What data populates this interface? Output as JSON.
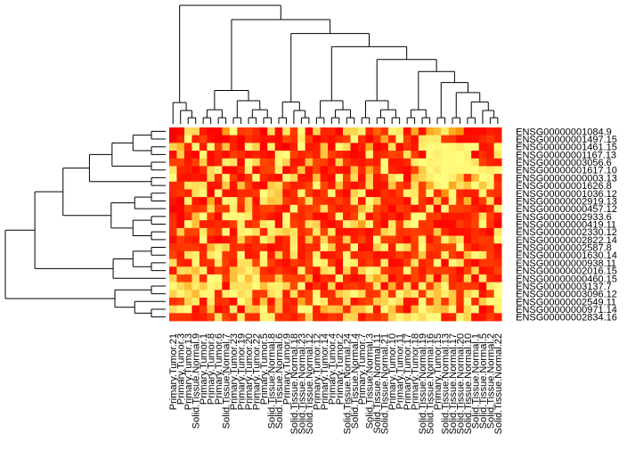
{
  "chart_data": {
    "type": "heatmap",
    "title": "",
    "xlabel": "",
    "ylabel": "",
    "colors": {
      "low": "#ffff80",
      "mid": "#ff8c00",
      "high": "#ff0000"
    },
    "value_range": [
      0,
      1
    ],
    "column_labels": [
      "Primary.Tumor.21",
      "Primary.Tumor.3",
      "Primary.Tumor.13",
      "Solid.Tissue.Normal.9",
      "Primary.Tumor.1",
      "Primary.Tumor.8",
      "Primary.Tumor.6",
      "Solid.Tissue.Normal.7",
      "Primary.Tumor.23",
      "Primary.Tumor.19",
      "Primary.Tumor.20",
      "Primary.Tumor.22",
      "Primary.Tumor.5",
      "Solid.Tissue.Normal.8",
      "Solid.Tissue.Normal.6",
      "Primary.Tumor.9",
      "Solid.Tissue.Normal.18",
      "Solid.Tissue.Normal.23",
      "Solid.Tissue.Normal.12",
      "Primary.Tumor.12",
      "Primary.Tumor.14",
      "Primary.Tumor.4",
      "Primary.Tumor.2",
      "Solid.Tissue.Normal.24",
      "Solid.Tissue.Normal.4",
      "Primary.Tumor.7",
      "Solid.Tissue.Normal.3",
      "Solid.Tissue.Normal.11",
      "Solid.Tissue.Normal.21",
      "Primary.Tumor.10",
      "Primary.Tumor.11",
      "Primary.Tumor.17",
      "Primary.Tumor.18",
      "Solid.Tissue.Normal.19",
      "Solid.Tissue.Normal.16",
      "Primary.Tumor.15",
      "Solid.Tissue.Normal.13",
      "Solid.Tissue.Normal.17",
      "Solid.Tissue.Normal.20",
      "Solid.Tissue.Normal.10",
      "Solid.Tissue.Normal.1",
      "Solid.Tissue.Normal.5",
      "Solid.Tissue.Normal.2",
      "Solid.Tissue.Normal.22"
    ],
    "row_labels": [
      "ENSG00000001084.9",
      "ENSG00000001497.15",
      "ENSG00000001461.15",
      "ENSG00000001167.13",
      "ENSG00000003056.6",
      "ENSG00000001617.10",
      "ENSG00000000003.13",
      "ENSG00000001626.8",
      "ENSG00000001036.12",
      "ENSG00000002919.13",
      "ENSG00000000457.12",
      "ENSG00000002933.6",
      "ENSG00000000419.11",
      "ENSG00000002330.12",
      "ENSG00000002822.14",
      "ENSG00000002587.8",
      "ENSG00000001630.14",
      "ENSG00000000938.11",
      "ENSG00000002016.15",
      "ENSG00000000460.15",
      "ENSG00000003137.7",
      "ENSG00000003096.12",
      "ENSG00000002549.11",
      "ENSG00000000971.14",
      "ENSG00000002834.16"
    ],
    "values": [
      [
        1.0,
        0.98,
        0.14,
        0.16,
        0.91,
        1.0,
        0.98,
        0.43,
        0.0,
        0.8,
        0.76,
        0.86,
        1.0,
        0.15,
        0.97,
        0.1,
        0.79,
        0.01,
        0.98,
        0.18,
        0.88,
        0.86,
        1.0,
        0.19,
        0.19,
        0.06,
        0.86,
        0.64,
        0.82,
        0.04,
        0.1,
        0.95,
        0.37,
        0.95,
        0.38,
        0.29,
        0.07,
        0.37,
        0.47,
        0.97,
        0.96,
        0.97,
        0.89,
        0.92
      ],
      [
        1.0,
        0.87,
        0.01,
        0.89,
        0.77,
        0.95,
        1.0,
        1.0,
        0.89,
        0.99,
        0.83,
        0.89,
        0.94,
        0.94,
        0.96,
        0.74,
        0.82,
        0.09,
        0.78,
        0.99,
        0.9,
        0.94,
        0.85,
        0.77,
        0.0,
        0.83,
        0.99,
        0.82,
        0.38,
        0.85,
        0.01,
        0.77,
        0.94,
        0.12,
        0.08,
        0.09,
        0.8,
        0.81,
        0.96,
        0.95,
        0.93,
        0.86,
        0.8,
        0.9
      ],
      [
        0.2,
        0.32,
        0.87,
        0.04,
        0.9,
        0.03,
        0.8,
        0.26,
        0.88,
        0.99,
        0.02,
        0.2,
        0.98,
        0.06,
        0.96,
        1.0,
        0.9,
        0.0,
        0.93,
        0.89,
        0.25,
        0.97,
        0.03,
        0.15,
        0.98,
        0.89,
        0.38,
        0.99,
        0.94,
        0.14,
        0.97,
        0.81,
        0.92,
        0.07,
        0.01,
        0.03,
        0.01,
        0.04,
        0.09,
        0.0,
        0.0,
        0.93,
        0.9,
        0.04
      ],
      [
        0.95,
        0.2,
        0.94,
        0.98,
        0.04,
        0.97,
        0.86,
        0.96,
        0.79,
        0.84,
        0.94,
        0.87,
        0.92,
        0.97,
        0.06,
        0.0,
        0.77,
        0.88,
        0.82,
        0.89,
        0.26,
        0.78,
        0.86,
        0.92,
        0.99,
        0.95,
        0.06,
        0.89,
        0.85,
        0.76,
        0.78,
        0.13,
        0.77,
        0.98,
        0.03,
        0.08,
        0.03,
        0.02,
        0.01,
        0.06,
        0.99,
        0.82,
        0.92,
        0.1
      ],
      [
        0.77,
        0.76,
        0.92,
        0.77,
        0.21,
        0.95,
        0.87,
        0.07,
        0.12,
        0.98,
        0.0,
        0.17,
        0.76,
        0.79,
        0.04,
        0.19,
        0.92,
        0.92,
        0.27,
        0.75,
        0.78,
        0.94,
        0.18,
        0.8,
        0.9,
        0.92,
        0.85,
        0.89,
        0.02,
        0.93,
        0.92,
        0.85,
        0.09,
        0.0,
        0.06,
        0.04,
        0.01,
        0.02,
        0.0,
        0.04,
        0.13,
        0.77,
        0.87,
        0.9
      ],
      [
        0.11,
        0.88,
        0.88,
        0.97,
        0.85,
        0.16,
        0.05,
        0.98,
        0.97,
        0.85,
        0.07,
        0.96,
        0.77,
        0.75,
        0.09,
        0.99,
        0.85,
        0.26,
        0.94,
        0.75,
        0.98,
        0.85,
        0.92,
        0.95,
        0.26,
        0.85,
        0.38,
        0.77,
        0.03,
        0.87,
        0.92,
        0.97,
        0.77,
        0.24,
        0.03,
        0.09,
        0.01,
        0.02,
        0.03,
        0.03,
        0.0,
        0.07,
        0.1,
        0.04
      ],
      [
        0.0,
        0.93,
        0.94,
        0.91,
        0.96,
        0.16,
        0.86,
        0.03,
        0.79,
        0.98,
        0.82,
        0.02,
        0.85,
        0.92,
        0.95,
        0.03,
        0.17,
        0.93,
        0.93,
        0.28,
        0.93,
        0.96,
        0.0,
        0.79,
        0.15,
        0.94,
        0.19,
        0.92,
        0.82,
        0.14,
        0.0,
        0.99,
        0.29,
        0.19,
        0.07,
        0.01,
        0.01,
        0.07,
        0.24,
        0.82,
        0.29,
        0.0,
        0.04,
        0.87
      ],
      [
        0.86,
        0.84,
        0.12,
        0.15,
        0.13,
        0.94,
        0.91,
        0.23,
        0.93,
        0.26,
        0.75,
        0.96,
        0.98,
        0.23,
        0.15,
        0.75,
        0.9,
        0.87,
        0.76,
        0.03,
        0.75,
        0.91,
        0.28,
        0.86,
        0.95,
        0.87,
        0.16,
        0.94,
        0.93,
        0.25,
        0.78,
        0.86,
        0.14,
        0.78,
        0.35,
        0.06,
        0.0,
        0.38,
        0.13,
        0.26,
        0.01,
        0.25,
        0.05,
        0.8
      ],
      [
        0.85,
        0.8,
        0.88,
        0.14,
        0.02,
        0.99,
        0.01,
        0.93,
        0.94,
        0.84,
        0.86,
        0.8,
        0.01,
        0.15,
        0.24,
        0.93,
        0.85,
        0.05,
        0.79,
        0.93,
        0.79,
        0.02,
        0.87,
        0.98,
        0.2,
        0.04,
        0.97,
        0.98,
        0.83,
        0.89,
        0.78,
        0.05,
        0.1,
        0.78,
        0.01,
        0.84,
        0.48,
        0.02,
        0.85,
        0.9,
        0.89,
        0.04,
        0.78,
        0.84
      ],
      [
        0.92,
        1.0,
        0.06,
        0.91,
        0.98,
        0.37,
        0.94,
        0.04,
        0.04,
        0.8,
        0.2,
        0.95,
        0.09,
        0.26,
        0.22,
        0.79,
        0.87,
        0.75,
        0.14,
        0.81,
        0.82,
        0.87,
        0.78,
        0.87,
        0.1,
        0.92,
        0.02,
        0.23,
        0.87,
        0.85,
        0.86,
        0.96,
        0.05,
        0.81,
        0.92,
        0.25,
        0.88,
        0.04,
        0.82,
        0.32,
        0.96,
        0.79,
        0.14,
        0.96
      ],
      [
        0.99,
        0.98,
        0.75,
        0.82,
        0.78,
        0.17,
        0.78,
        0.8,
        0.08,
        0.85,
        0.2,
        0.87,
        0.78,
        0.76,
        0.89,
        0.94,
        0.0,
        0.84,
        0.8,
        0.75,
        0.14,
        0.8,
        0.91,
        0.85,
        0.8,
        0.3,
        0.1,
        0.77,
        0.85,
        0.98,
        0.78,
        0.83,
        0.94,
        0.83,
        0.06,
        0.99,
        0.02,
        0.76,
        0.77,
        0.8,
        0.88,
        0.96,
        0.88,
        0.08
      ],
      [
        0.86,
        0.99,
        0.84,
        0.3,
        0.0,
        0.79,
        0.98,
        0.03,
        0.02,
        0.03,
        0.1,
        0.88,
        0.82,
        0.91,
        0.98,
        0.01,
        0.82,
        0.86,
        0.76,
        0.95,
        0.98,
        0.85,
        0.02,
        0.89,
        0.75,
        0.07,
        0.94,
        0.79,
        0.94,
        0.86,
        0.98,
        0.81,
        0.01,
        0.01,
        0.8,
        0.79,
        0.93,
        0.9,
        0.92,
        0.89,
        0.78,
        0.12,
        0.77,
        0.93
      ],
      [
        0.82,
        0.99,
        0.03,
        0.28,
        0.89,
        0.9,
        0.85,
        0.9,
        0.78,
        0.07,
        0.85,
        0.78,
        0.11,
        0.04,
        0.96,
        0.03,
        0.78,
        0.83,
        0.13,
        0.2,
        0.92,
        0.97,
        0.86,
        0.06,
        0.18,
        0.4,
        0.03,
        0.83,
        0.98,
        0.12,
        0.78,
        0.09,
        0.0,
        0.81,
        0.8,
        0.99,
        0.98,
        0.97,
        0.79,
        0.86,
        0.76,
        0.01,
        0.8,
        0.99
      ],
      [
        0.83,
        0.21,
        0.77,
        0.76,
        0.1,
        0.75,
        0.81,
        0.01,
        0.96,
        0.07,
        0.03,
        0.14,
        0.86,
        0.08,
        0.14,
        0.23,
        0.12,
        0.84,
        0.76,
        0.1,
        0.76,
        0.09,
        0.93,
        0.94,
        0.91,
        0.88,
        0.97,
        0.83,
        0.19,
        0.1,
        0.82,
        0.8,
        0.79,
        0.8,
        0.84,
        0.24,
        0.85,
        0.96,
        0.95,
        0.93,
        0.84,
        0.9,
        0.99,
        0.1
      ],
      [
        0.95,
        0.78,
        0.88,
        0.9,
        0.02,
        0.92,
        0.99,
        0.92,
        0.86,
        0.2,
        0.76,
        0.86,
        0.05,
        0.2,
        0.93,
        0.84,
        0.11,
        0.91,
        0.26,
        0.83,
        0.17,
        0.78,
        0.85,
        0.21,
        0.9,
        0.75,
        0.93,
        0.0,
        0.78,
        0.78,
        0.84,
        0.96,
        0.76,
        0.06,
        0.93,
        0.78,
        0.04,
        0.3,
        0.13,
        0.95,
        0.82,
        0.79,
        0.8,
        0.02
      ],
      [
        0.83,
        0.81,
        0.8,
        0.8,
        0.89,
        0.32,
        0.09,
        0.19,
        0.84,
        0.81,
        0.92,
        0.84,
        0.84,
        0.97,
        0.91,
        0.86,
        0.06,
        0.92,
        0.83,
        0.86,
        0.0,
        0.23,
        0.88,
        0.86,
        0.01,
        0.97,
        0.94,
        0.23,
        0.04,
        0.89,
        0.06,
        0.18,
        0.79,
        0.02,
        0.78,
        0.81,
        0.76,
        0.76,
        0.0,
        0.8,
        0.93,
        0.84,
        0.8,
        0.95
      ],
      [
        0.76,
        0.89,
        0.12,
        0.08,
        0.85,
        0.1,
        0.02,
        0.81,
        0.84,
        0.0,
        0.92,
        0.89,
        0.02,
        0.9,
        0.21,
        0.85,
        0.12,
        0.93,
        0.79,
        0.06,
        0.92,
        0.91,
        0.84,
        0.04,
        0.87,
        0.83,
        0.82,
        0.94,
        0.93,
        0.89,
        0.77,
        0.87,
        0.76,
        0.24,
        0.88,
        0.85,
        0.07,
        0.78,
        0.9,
        0.27,
        0.01,
        0.1,
        0.79,
        0.91
      ],
      [
        0.15,
        0.86,
        0.91,
        0.04,
        0.84,
        0.82,
        0.09,
        0.77,
        0.89,
        0.13,
        0.14,
        0.76,
        0.06,
        0.77,
        0.9,
        0.96,
        0.78,
        0.87,
        0.77,
        0.0,
        0.08,
        0.8,
        0.97,
        0.02,
        0.08,
        0.87,
        0.78,
        0.89,
        0.08,
        0.98,
        0.96,
        0.79,
        0.13,
        0.87,
        0.81,
        0.01,
        0.97,
        0.01,
        0.13,
        0.87,
        0.98,
        0.81,
        0.8,
        0.84
      ],
      [
        0.92,
        0.15,
        0.17,
        0.28,
        0.07,
        0.93,
        0.76,
        0.83,
        0.28,
        0.19,
        0.06,
        0.2,
        0.84,
        0.9,
        0.8,
        0.87,
        0.92,
        0.06,
        0.8,
        0.93,
        0.16,
        0.08,
        0.96,
        0.21,
        0.86,
        0.19,
        0.02,
        0.08,
        0.78,
        0.83,
        0.81,
        0.02,
        0.75,
        0.91,
        0.77,
        0.8,
        0.78,
        0.82,
        0.97,
        0.76,
        0.2,
        0.94,
        0.91,
        0.75
      ],
      [
        0.19,
        0.75,
        0.78,
        0.14,
        0.85,
        0.0,
        0.02,
        0.77,
        0.29,
        0.04,
        0.28,
        0.05,
        0.75,
        0.75,
        0.23,
        0.76,
        0.76,
        0.79,
        0.35,
        0.99,
        0.84,
        0.88,
        0.03,
        0.88,
        0.96,
        0.91,
        0.13,
        0.38,
        0.21,
        0.96,
        0.82,
        0.9,
        0.75,
        0.88,
        0.2,
        0.98,
        0.25,
        0.85,
        0.93,
        0.17,
        0.97,
        0.08,
        0.86,
        0.92
      ],
      [
        0.03,
        0.16,
        0.29,
        0.09,
        0.23,
        0.04,
        0.09,
        0.97,
        0.13,
        0.12,
        0.14,
        0.01,
        0.28,
        0.08,
        0.07,
        0.19,
        0.75,
        0.02,
        0.98,
        0.82,
        0.95,
        0.19,
        0.97,
        0.82,
        0.79,
        0.85,
        0.78,
        0.11,
        0.96,
        0.34,
        0.87,
        0.16,
        0.93,
        0.07,
        0.78,
        0.27,
        0.04,
        0.84,
        0.78,
        0.8,
        0.8,
        0.99,
        0.09,
        0.02
      ],
      [
        0.2,
        0.04,
        0.14,
        0.3,
        0.04,
        0.03,
        0.87,
        0.08,
        0.01,
        0.15,
        0.07,
        0.81,
        0.79,
        0.13,
        0.06,
        0.9,
        0.14,
        0.83,
        0.76,
        0.03,
        0.87,
        0.84,
        0.24,
        0.13,
        0.01,
        0.17,
        0.83,
        0.78,
        0.18,
        0.81,
        0.03,
        0.23,
        0.1,
        0.8,
        0.12,
        0.27,
        0.08,
        0.24,
        0.83,
        0.19,
        0.06,
        0.92,
        0.76,
        0.0
      ],
      [
        0.84,
        0.76,
        0.21,
        0.09,
        0.94,
        0.09,
        0.83,
        0.82,
        0.96,
        0.01,
        0.18,
        0.88,
        0.26,
        0.92,
        0.24,
        0.86,
        0.9,
        0.38,
        0.76,
        0.01,
        0.09,
        0.83,
        0.81,
        0.13,
        0.93,
        0.81,
        0.75,
        0.23,
        0.2,
        0.05,
        0.15,
        0.93,
        0.92,
        0.02,
        0.78,
        0.25,
        0.81,
        0.25,
        0.82,
        0.04,
        0.85,
        0.22,
        0.01,
        0.04
      ],
      [
        0.16,
        0.05,
        0.01,
        0.95,
        0.8,
        0.25,
        0.97,
        0.89,
        0.09,
        0.97,
        0.22,
        0.27,
        0.03,
        0.76,
        0.23,
        0.89,
        0.82,
        0.01,
        0.03,
        0.89,
        0.34,
        0.23,
        0.29,
        0.85,
        0.25,
        0.25,
        0.05,
        0.92,
        0.03,
        0.26,
        0.77,
        0.97,
        0.31,
        0.01,
        0.18,
        0.25,
        0.29,
        0.02,
        0.86,
        0.17,
        0.02,
        0.99,
        0.88,
        0.06
      ],
      [
        0.82,
        0.82,
        0.82,
        0.92,
        0.9,
        0.77,
        0.12,
        0.76,
        0.85,
        0.07,
        0.84,
        0.84,
        0.05,
        0.07,
        0.84,
        0.83,
        0.9,
        0.76,
        0.21,
        0.86,
        0.9,
        0.8,
        0.84,
        0.16,
        0.19,
        0.92,
        0.77,
        0.82,
        0.75,
        0.2,
        0.04,
        0.15,
        0.06,
        0.15,
        0.02,
        0.02,
        0.93,
        0.87,
        0.05,
        0.2,
        0.94,
        0.93,
        0.77,
        0.9
      ]
    ],
    "row_dendrogram": "(((((((r0,r1),(r2,r3)),(r4,r5)),(r6,r7)),(((r8,r9),r10),((r11,r12),(r13,r14)))),(((r15,r16),(r17,r18)),r19)),((r20,r21),(r22,(r23,r24))))",
    "column_dendrogram": "((c0,(c1,(c2,c3))),((((c4,c5),(c6,c7)),((c8,c9),((c10,c11),(c12,c13)))),(((c14,c15),(c16,(c17,c18))),(((c19,c20),((c21,c22),(c23,c24))),(((c25,c26),((c27,c28),(c29,c30))),(((c31,c32),(c33,c34)),((c35,c36),((c37,c38),((c39,c40),(c41,(c42,c43))))))))))))"
  }
}
